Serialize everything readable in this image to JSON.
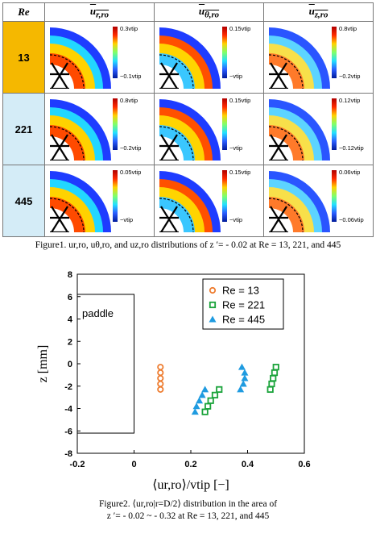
{
  "figure1": {
    "corner_header": "Re",
    "column_headers": [
      "u",
      "u",
      "u"
    ],
    "column_subscripts": [
      "r,ro",
      "θ,ro",
      "z,ro"
    ],
    "rows": [
      {
        "re": "13",
        "scales": [
          {
            "hi": "0.3vtip",
            "lo": "−0.1vtip"
          },
          {
            "hi": "0.15vtip",
            "lo": "−vtip"
          },
          {
            "hi": "0.8vtip",
            "lo": "−0.2vtip"
          }
        ]
      },
      {
        "re": "221",
        "scales": [
          {
            "hi": "0.8vtip",
            "lo": "−0.2vtip"
          },
          {
            "hi": "0.15vtip",
            "lo": "−vtip"
          },
          {
            "hi": "0.12vtip",
            "lo": "−0.12vtip"
          }
        ]
      },
      {
        "re": "445",
        "scales": [
          {
            "hi": "0.05vtip",
            "lo": "−vtip"
          },
          {
            "hi": "0.15vtip",
            "lo": "−vtip"
          },
          {
            "hi": "0.06vtip",
            "lo": "−0.06vtip"
          }
        ]
      }
    ],
    "caption": "Figure1. ur,ro, uθ,ro, and uz,ro distributions of z ′= - 0.02 at Re = 13, 221, and 445"
  },
  "figure2": {
    "caption_line1": "Figure2. ⟨ur,ro|r=D/2⟩ distribution in the area of",
    "caption_line2": "z ′= - 0.02 ~ - 0.32 at Re = 13, 221, and 445"
  },
  "chart_data": {
    "type": "scatter",
    "xlabel": "⟨ur,ro⟩/vtip [−]",
    "ylabel": "z [mm]",
    "xlim": [
      -0.2,
      0.6
    ],
    "ylim": [
      -8,
      8
    ],
    "xticks": [
      "-0.2",
      "0",
      "0.2",
      "0.4",
      "0.6"
    ],
    "yticks": [
      "8",
      "6",
      "4",
      "2",
      "0",
      "-2",
      "-4",
      "-6",
      "-8"
    ],
    "annotation": "paddle",
    "paddle_rect": {
      "x": [
        -0.2,
        0.0
      ],
      "z": [
        -6.2,
        6.2
      ]
    },
    "legend_position": "top-right",
    "colors": {
      "re13": "#ee7d31",
      "re221": "#1aa33a",
      "re445": "#1f9be0"
    },
    "series": [
      {
        "name": "Re = 13",
        "marker": "circle",
        "points": [
          [
            0.093,
            -0.3
          ],
          [
            0.093,
            -0.8
          ],
          [
            0.093,
            -1.3
          ],
          [
            0.093,
            -1.8
          ],
          [
            0.093,
            -2.3
          ]
        ]
      },
      {
        "name": "Re = 221",
        "marker": "square",
        "points": [
          [
            0.5,
            -0.3
          ],
          [
            0.495,
            -0.8
          ],
          [
            0.49,
            -1.3
          ],
          [
            0.485,
            -1.8
          ],
          [
            0.48,
            -2.3
          ],
          [
            0.3,
            -2.3
          ],
          [
            0.285,
            -2.8
          ],
          [
            0.27,
            -3.3
          ],
          [
            0.26,
            -3.8
          ],
          [
            0.25,
            -4.3
          ]
        ]
      },
      {
        "name": "Re = 445",
        "marker": "triangle",
        "points": [
          [
            0.38,
            -0.3
          ],
          [
            0.39,
            -0.8
          ],
          [
            0.39,
            -1.3
          ],
          [
            0.385,
            -1.8
          ],
          [
            0.375,
            -2.3
          ],
          [
            0.25,
            -2.3
          ],
          [
            0.24,
            -2.8
          ],
          [
            0.23,
            -3.3
          ],
          [
            0.22,
            -3.8
          ],
          [
            0.215,
            -4.3
          ]
        ]
      }
    ]
  }
}
